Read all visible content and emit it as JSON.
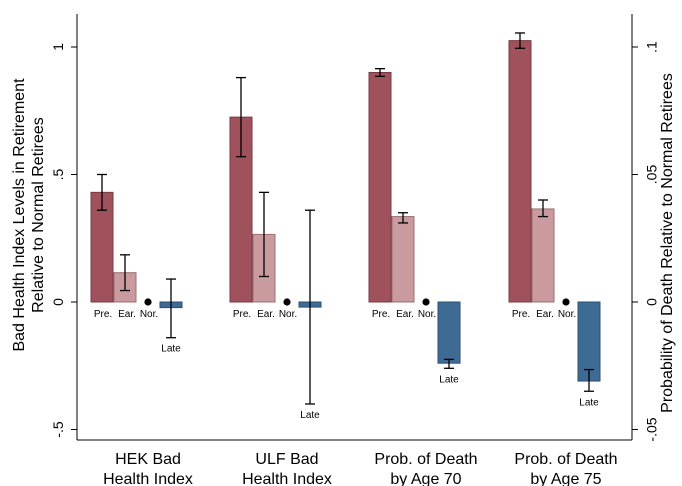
{
  "chart_data": {
    "type": "bar",
    "xlabel": "",
    "ylabel_left": "Bad Health Index Levels in Retirement Relative to Normal Retirees",
    "ylabel_left_lines": [
      "Bad Health Index Levels in Retirement",
      "Relative to Normal Retirees"
    ],
    "ylabel_right": "Probability of Death Relative to Normal Retirees",
    "ylim_left": [
      -0.5,
      1.12
    ],
    "ylim_right": [
      -0.05,
      0.112
    ],
    "yticks_left": [
      -0.5,
      0,
      0.5,
      1
    ],
    "yticks_left_labels": [
      "-.5",
      "0",
      ".5",
      "1"
    ],
    "yticks_right": [
      -0.05,
      0,
      0.05,
      0.1
    ],
    "yticks_right_labels": [
      "-.05",
      "0",
      ".05",
      ".1"
    ],
    "grid": false,
    "legend": "none",
    "bar_labels": {
      "pre": "Pre.",
      "early": "Ear.",
      "normal": "Nor.",
      "late": "Late"
    },
    "groups": [
      {
        "category": "HEK Bad Health Index",
        "category_lines": [
          "HEK Bad",
          "Health Index"
        ],
        "axis": "left",
        "pre": {
          "value": 0.43,
          "ci": [
            0.36,
            0.5
          ]
        },
        "early": {
          "value": 0.115,
          "ci": [
            0.045,
            0.185
          ]
        },
        "normal": {
          "value": 0
        },
        "late": {
          "value": -0.022,
          "ci": [
            -0.14,
            0.09
          ]
        }
      },
      {
        "category": "ULF Bad Health Index",
        "category_lines": [
          "ULF Bad",
          "Health Index"
        ],
        "axis": "left",
        "pre": {
          "value": 0.725,
          "ci": [
            0.57,
            0.88
          ]
        },
        "early": {
          "value": 0.265,
          "ci": [
            0.1,
            0.43
          ]
        },
        "normal": {
          "value": 0
        },
        "late": {
          "value": -0.02,
          "ci": [
            -0.4,
            0.36
          ]
        }
      },
      {
        "category": "Prob. of Death by Age 70",
        "category_lines": [
          "Prob. of Death",
          "by Age 70"
        ],
        "axis": "right",
        "pre": {
          "value": 0.09,
          "ci": [
            0.0885,
            0.0915
          ]
        },
        "early": {
          "value": 0.0335,
          "ci": [
            0.031,
            0.035
          ]
        },
        "normal": {
          "value": 0
        },
        "late": {
          "value": -0.024,
          "ci": [
            -0.026,
            -0.0225
          ]
        }
      },
      {
        "category": "Prob. of Death by Age 75",
        "category_lines": [
          "Prob. of Death",
          "by Age 75"
        ],
        "axis": "right",
        "pre": {
          "value": 0.1025,
          "ci": [
            0.0995,
            0.1055
          ]
        },
        "early": {
          "value": 0.0365,
          "ci": [
            0.0335,
            0.04
          ]
        },
        "normal": {
          "value": 0
        },
        "late": {
          "value": -0.031,
          "ci": [
            -0.035,
            -0.0265
          ]
        }
      }
    ],
    "colors": {
      "pre": "#a0525c",
      "pre_edge": "#7a3a42",
      "early": "#c99a9e",
      "early_edge": "#9c6f73",
      "late": "#3e6b94",
      "late_edge": "#2c4f70",
      "axis": "#000000"
    }
  }
}
